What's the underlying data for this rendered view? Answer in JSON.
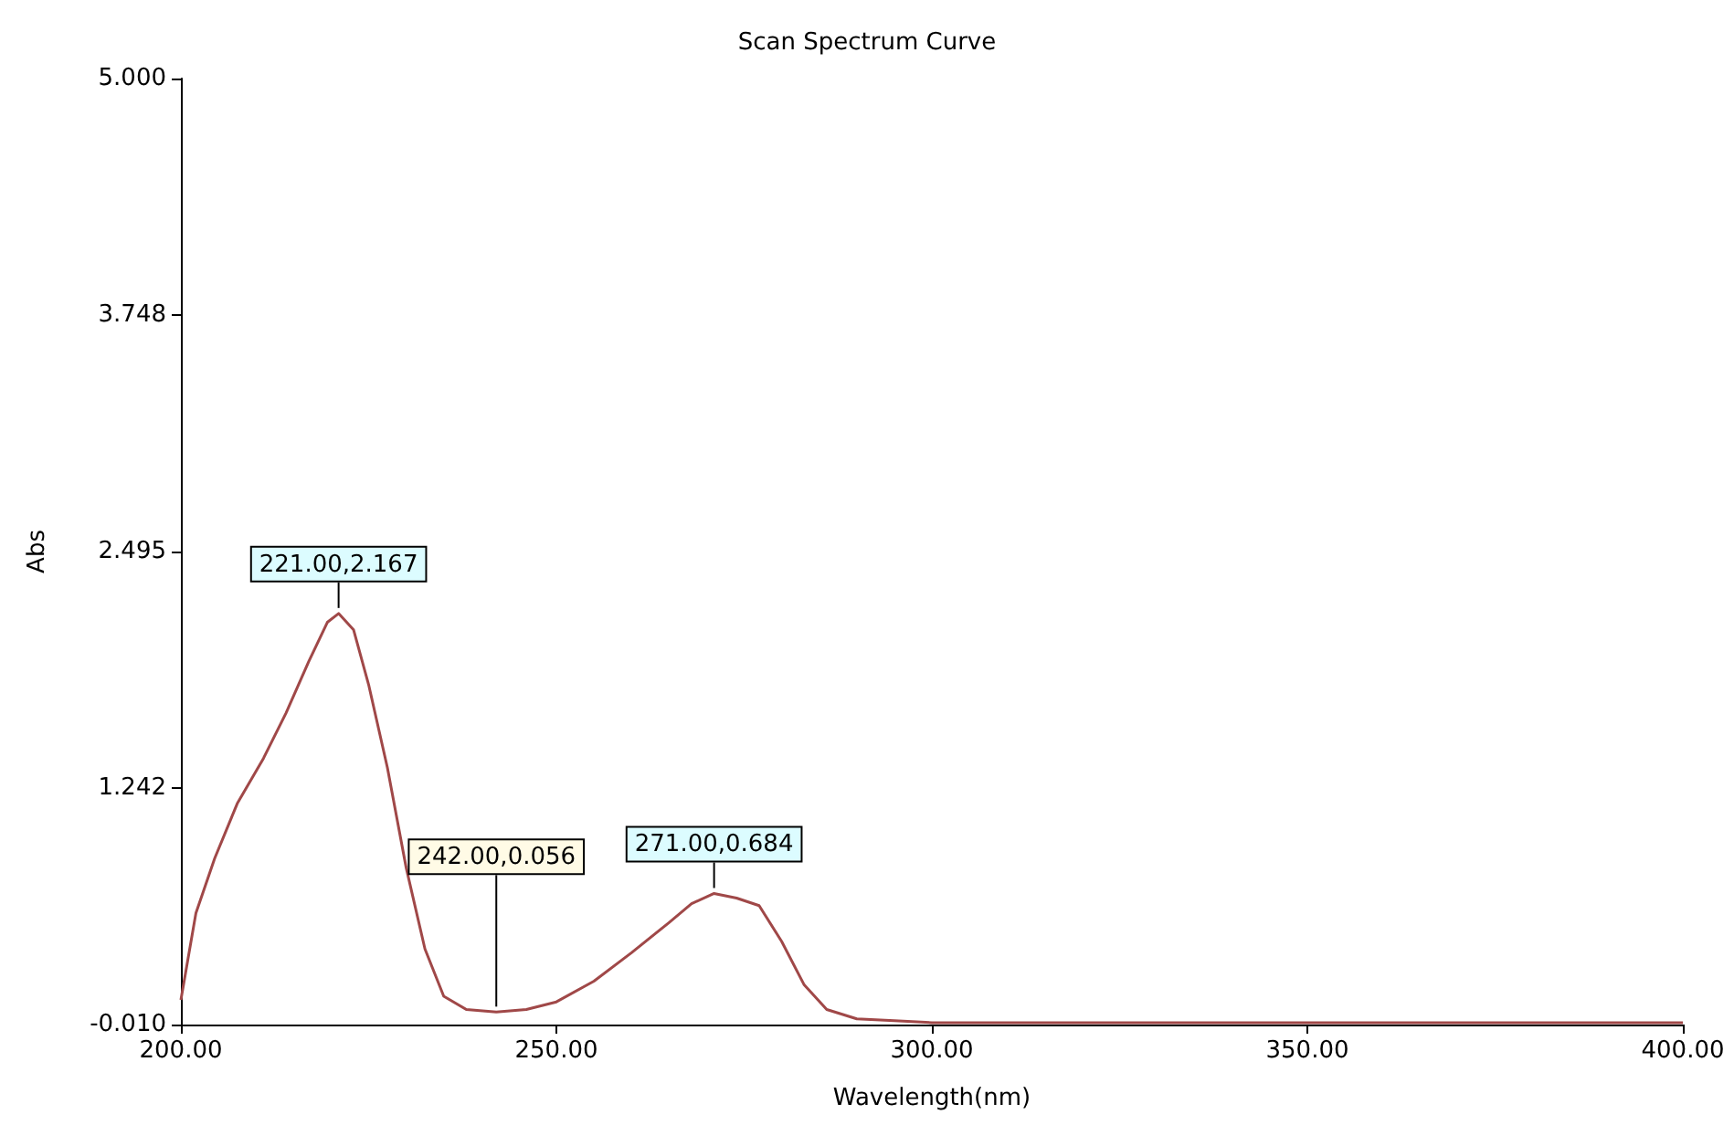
{
  "chart_data": {
    "type": "line",
    "title": "Scan Spectrum Curve",
    "xlabel": "Wavelength(nm)",
    "ylabel": "Abs",
    "x": [
      200,
      202,
      204.5,
      207.5,
      211,
      214,
      217,
      219.5,
      221,
      223,
      225,
      227.5,
      230,
      232.5,
      235,
      238,
      242,
      246,
      250,
      255,
      260,
      265,
      268,
      271,
      274,
      277,
      280,
      283,
      286,
      290,
      295,
      300,
      320,
      350,
      380,
      400
    ],
    "series": [
      {
        "color": "#a04848",
        "values": [
          0.12,
          0.58,
          0.87,
          1.16,
          1.4,
          1.64,
          1.91,
          2.12,
          2.167,
          2.08,
          1.79,
          1.35,
          0.82,
          0.39,
          0.14,
          0.07,
          0.056,
          0.07,
          0.11,
          0.22,
          0.37,
          0.53,
          0.63,
          0.684,
          0.66,
          0.62,
          0.43,
          0.2,
          0.07,
          0.02,
          0.01,
          0,
          0,
          0,
          0,
          0
        ]
      }
    ],
    "xlim": [
      200,
      400
    ],
    "xticks": [
      {
        "value": 200,
        "label": "200.00"
      },
      {
        "value": 250,
        "label": "250.00"
      },
      {
        "value": 300,
        "label": "300.00"
      },
      {
        "value": 350,
        "label": "350.00"
      },
      {
        "value": 400,
        "label": "400.00"
      }
    ],
    "ylim": [
      -0.01,
      5
    ],
    "yticks": [
      {
        "value": -0.01,
        "label": "-0.010"
      },
      {
        "value": 1.242,
        "label": "1.242"
      },
      {
        "value": 2.495,
        "label": "2.495"
      },
      {
        "value": 3.748,
        "label": "3.748"
      },
      {
        "value": 5,
        "label": "5.000"
      }
    ],
    "annotations": [
      {
        "text": "221.00,2.167",
        "x": 221,
        "y": 2.167
      },
      {
        "text": "242.00,0.056",
        "x": 242,
        "y": 0.056
      },
      {
        "text": "271.00,0.684",
        "x": 271,
        "y": 0.684
      }
    ],
    "grid": false,
    "marker": "none",
    "line_style": "solid"
  }
}
